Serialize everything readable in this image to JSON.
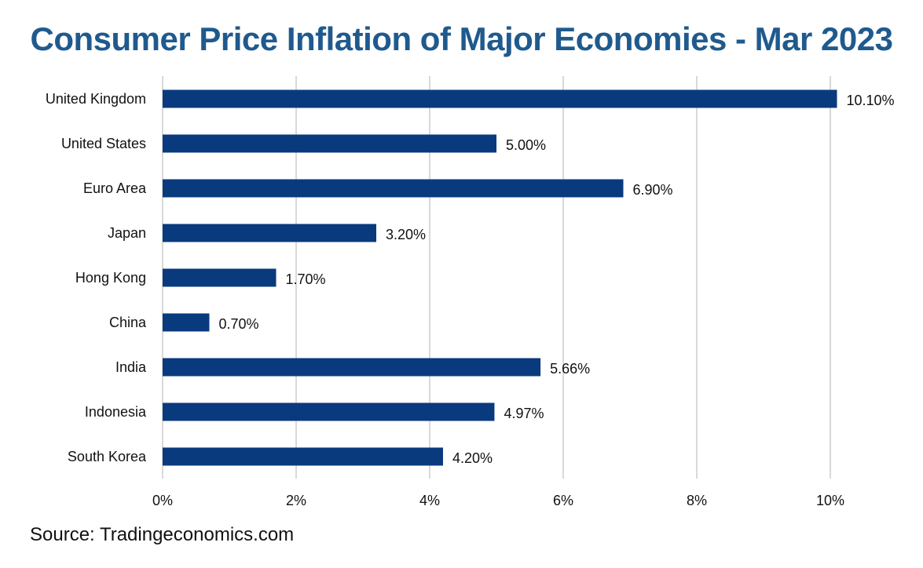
{
  "chart_data": {
    "type": "bar",
    "orientation": "horizontal",
    "title": "Consumer Price Inflation of Major Economies - Mar 2023",
    "xlabel": "",
    "ylabel": "",
    "categories": [
      "United Kingdom",
      "United States",
      "Euro Area",
      "Japan",
      "Hong Kong",
      "China",
      "India",
      "Indonesia",
      "South Korea"
    ],
    "values": [
      10.1,
      5.0,
      6.9,
      3.2,
      1.7,
      0.7,
      5.66,
      4.97,
      4.2
    ],
    "data_labels": [
      "10.10%",
      "5.00%",
      "6.90%",
      "3.20%",
      "1.70%",
      "0.70%",
      "5.66%",
      "4.97%",
      "4.20%"
    ],
    "xlim": [
      0,
      10
    ],
    "x_ticks": [
      0,
      2,
      4,
      6,
      8,
      10
    ],
    "x_tick_labels": [
      "0%",
      "2%",
      "4%",
      "6%",
      "8%",
      "10%"
    ],
    "grid": "vertical",
    "legend": "none",
    "bar_color": "#0a3a7e",
    "title_color": "#1f5a8e",
    "source": "Source: Tradingeconomics.com"
  }
}
